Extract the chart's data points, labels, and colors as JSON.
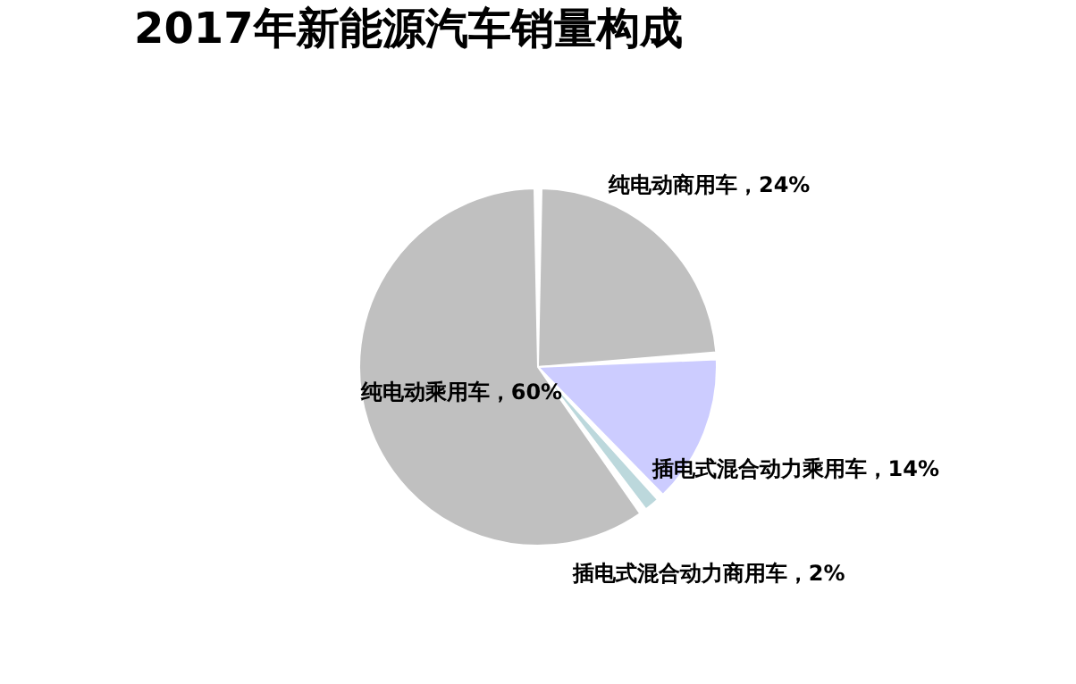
{
  "chart_data": {
    "type": "pie",
    "title": "2017年新能源汽车销量构成",
    "categories": [
      "纯电动商用车",
      "插电式混合动力乘用车",
      "插电式混合动力商用车",
      "纯电动乘用车"
    ],
    "values": [
      24,
      14,
      2,
      60
    ],
    "value_labels": [
      "24%",
      "14%",
      "2%",
      "60%"
    ],
    "colors": [
      "#c0c0c0",
      "#ccccff",
      "#bcd8dc",
      "#c0c0c0"
    ],
    "legend": false
  }
}
